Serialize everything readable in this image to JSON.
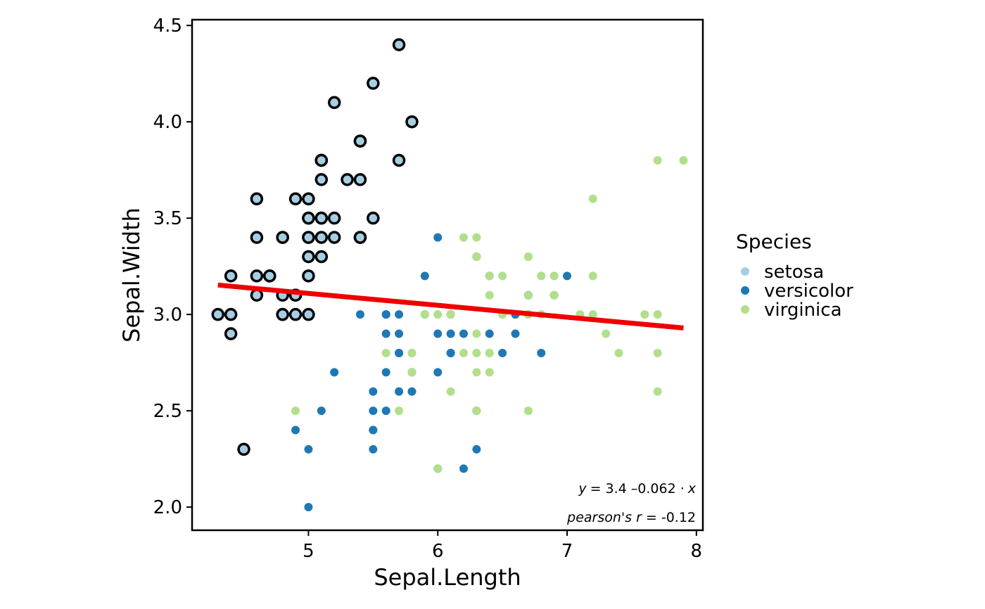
{
  "chart_data": {
    "type": "scatter",
    "xlabel": "Sepal.Length",
    "ylabel": "Sepal.Width",
    "xlim": [
      4.1,
      8.05
    ],
    "ylim": [
      1.88,
      4.53
    ],
    "xticks": [
      5,
      6,
      7,
      8
    ],
    "yticks": [
      2.0,
      2.5,
      3.0,
      3.5,
      4.0,
      4.5
    ],
    "xtick_labels": [
      "5",
      "6",
      "7",
      "8"
    ],
    "ytick_labels": [
      "2.0",
      "2.5",
      "3.0",
      "3.5",
      "4.0",
      "4.5"
    ],
    "legend": {
      "title": "Species",
      "position": "right",
      "entries": [
        "setosa",
        "versicolor",
        "virginica"
      ]
    },
    "colors": {
      "setosa": "#a6cee3",
      "versicolor": "#1f78b4",
      "virginica": "#b2df8a",
      "regression": "#ee0000",
      "highlight_outline": "#000000"
    },
    "series": [
      {
        "name": "setosa",
        "highlighted": true,
        "points": [
          [
            5.1,
            3.5
          ],
          [
            4.9,
            3.0
          ],
          [
            4.7,
            3.2
          ],
          [
            4.6,
            3.1
          ],
          [
            5.0,
            3.6
          ],
          [
            5.4,
            3.9
          ],
          [
            4.6,
            3.4
          ],
          [
            5.0,
            3.4
          ],
          [
            4.4,
            2.9
          ],
          [
            4.9,
            3.1
          ],
          [
            5.4,
            3.7
          ],
          [
            4.8,
            3.4
          ],
          [
            4.8,
            3.0
          ],
          [
            4.3,
            3.0
          ],
          [
            5.8,
            4.0
          ],
          [
            5.7,
            4.4
          ],
          [
            5.4,
            3.9
          ],
          [
            5.1,
            3.5
          ],
          [
            5.7,
            3.8
          ],
          [
            5.1,
            3.8
          ],
          [
            5.4,
            3.4
          ],
          [
            5.1,
            3.7
          ],
          [
            4.6,
            3.6
          ],
          [
            5.1,
            3.3
          ],
          [
            4.8,
            3.4
          ],
          [
            5.0,
            3.0
          ],
          [
            5.0,
            3.4
          ],
          [
            5.2,
            3.5
          ],
          [
            5.2,
            3.4
          ],
          [
            4.7,
            3.2
          ],
          [
            4.8,
            3.1
          ],
          [
            5.4,
            3.4
          ],
          [
            5.2,
            4.1
          ],
          [
            5.5,
            4.2
          ],
          [
            4.9,
            3.1
          ],
          [
            5.0,
            3.2
          ],
          [
            5.5,
            3.5
          ],
          [
            4.9,
            3.6
          ],
          [
            4.4,
            3.0
          ],
          [
            5.1,
            3.4
          ],
          [
            5.0,
            3.5
          ],
          [
            4.5,
            2.3
          ],
          [
            4.4,
            3.2
          ],
          [
            5.0,
            3.5
          ],
          [
            5.1,
            3.8
          ],
          [
            4.8,
            3.0
          ],
          [
            5.1,
            3.8
          ],
          [
            4.6,
            3.2
          ],
          [
            5.3,
            3.7
          ],
          [
            5.0,
            3.3
          ]
        ]
      },
      {
        "name": "versicolor",
        "highlighted": false,
        "points": [
          [
            7.0,
            3.2
          ],
          [
            6.4,
            3.2
          ],
          [
            6.9,
            3.1
          ],
          [
            5.5,
            2.3
          ],
          [
            6.5,
            2.8
          ],
          [
            5.7,
            2.8
          ],
          [
            6.3,
            3.3
          ],
          [
            4.9,
            2.4
          ],
          [
            6.6,
            2.9
          ],
          [
            5.2,
            2.7
          ],
          [
            5.0,
            2.0
          ],
          [
            5.9,
            3.0
          ],
          [
            6.0,
            2.2
          ],
          [
            6.1,
            2.9
          ],
          [
            5.6,
            2.9
          ],
          [
            6.7,
            3.1
          ],
          [
            5.6,
            3.0
          ],
          [
            5.8,
            2.7
          ],
          [
            6.2,
            2.2
          ],
          [
            5.6,
            2.5
          ],
          [
            5.9,
            3.2
          ],
          [
            6.1,
            2.8
          ],
          [
            6.3,
            2.5
          ],
          [
            6.1,
            2.8
          ],
          [
            6.4,
            2.9
          ],
          [
            6.6,
            3.0
          ],
          [
            6.8,
            2.8
          ],
          [
            6.7,
            3.0
          ],
          [
            6.0,
            2.9
          ],
          [
            5.7,
            2.6
          ],
          [
            5.5,
            2.4
          ],
          [
            5.5,
            2.4
          ],
          [
            5.8,
            2.7
          ],
          [
            6.0,
            2.7
          ],
          [
            5.4,
            3.0
          ],
          [
            6.0,
            3.4
          ],
          [
            6.7,
            3.1
          ],
          [
            6.3,
            2.3
          ],
          [
            5.6,
            3.0
          ],
          [
            5.5,
            2.5
          ],
          [
            5.5,
            2.6
          ],
          [
            6.1,
            3.0
          ],
          [
            5.8,
            2.6
          ],
          [
            5.0,
            2.3
          ],
          [
            5.6,
            2.7
          ],
          [
            5.7,
            3.0
          ],
          [
            5.7,
            2.9
          ],
          [
            6.2,
            2.9
          ],
          [
            5.1,
            2.5
          ],
          [
            5.7,
            2.8
          ]
        ]
      },
      {
        "name": "virginica",
        "highlighted": false,
        "points": [
          [
            6.3,
            3.3
          ],
          [
            5.8,
            2.7
          ],
          [
            7.1,
            3.0
          ],
          [
            6.3,
            2.9
          ],
          [
            6.5,
            3.0
          ],
          [
            7.6,
            3.0
          ],
          [
            4.9,
            2.5
          ],
          [
            7.3,
            2.9
          ],
          [
            6.7,
            2.5
          ],
          [
            7.2,
            3.6
          ],
          [
            6.5,
            3.2
          ],
          [
            6.4,
            2.7
          ],
          [
            6.8,
            3.0
          ],
          [
            5.7,
            2.5
          ],
          [
            5.8,
            2.8
          ],
          [
            6.4,
            3.2
          ],
          [
            6.5,
            3.0
          ],
          [
            7.7,
            3.8
          ],
          [
            7.7,
            2.6
          ],
          [
            6.0,
            2.2
          ],
          [
            6.9,
            3.2
          ],
          [
            5.6,
            2.8
          ],
          [
            7.7,
            2.8
          ],
          [
            6.3,
            2.7
          ],
          [
            6.7,
            3.3
          ],
          [
            7.2,
            3.2
          ],
          [
            6.2,
            2.8
          ],
          [
            6.1,
            3.0
          ],
          [
            6.4,
            2.8
          ],
          [
            7.2,
            3.0
          ],
          [
            7.4,
            2.8
          ],
          [
            7.9,
            3.8
          ],
          [
            6.4,
            2.8
          ],
          [
            6.3,
            2.8
          ],
          [
            6.1,
            2.6
          ],
          [
            7.7,
            3.0
          ],
          [
            6.3,
            3.4
          ],
          [
            6.4,
            3.1
          ],
          [
            6.0,
            3.0
          ],
          [
            6.9,
            3.1
          ],
          [
            6.7,
            3.1
          ],
          [
            6.9,
            3.1
          ],
          [
            5.8,
            2.7
          ],
          [
            6.8,
            3.2
          ],
          [
            6.7,
            3.3
          ],
          [
            6.7,
            3.0
          ],
          [
            6.3,
            2.5
          ],
          [
            6.5,
            3.0
          ],
          [
            6.2,
            3.4
          ],
          [
            5.9,
            3.0
          ]
        ]
      }
    ],
    "regression": {
      "intercept": 3.4189,
      "slope": -0.0619,
      "x_range": [
        4.3,
        7.9
      ]
    },
    "annotations": {
      "equation": {
        "lhs": "y",
        "eq": "= 3.4 –0.062 ·",
        "var": "x"
      },
      "correlation": {
        "prefix": "pearson's",
        "var": "r",
        "rest": "= -0.12"
      }
    }
  }
}
